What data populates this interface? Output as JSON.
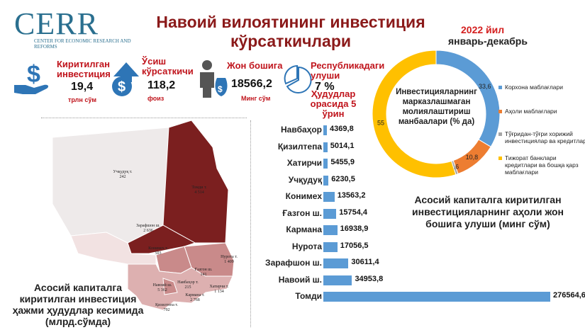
{
  "header": {
    "logo": "CERR",
    "logo_subtitle": "CENTER FOR ECONOMIC RESEARCH AND REFORMS",
    "title": "Навоий вилоятининг инвестиция кўрсаткичлари",
    "period_year": "2022 йил",
    "period_months": "январь-декабрь"
  },
  "kpis": [
    {
      "label": "Киритилган инвестиция",
      "value": "19,4",
      "unit": "трлн сўм",
      "icon": "money-hand-icon"
    },
    {
      "label": "Ўсиш кўрсаткичи",
      "value": "118,2",
      "unit": "фоиз",
      "icon": "growth-arrow-icon"
    },
    {
      "label": "Жон бошига",
      "value": "18566,2",
      "unit": "Минг сўм",
      "icon": "person-money-icon"
    },
    {
      "label": "Республикадаги улуши",
      "value": "7 %",
      "note": "Ҳудудлар орасида 5 ўрин",
      "icon": "pie-icon"
    }
  ],
  "map": {
    "caption": "Асосий капиталга киритилган инвестиция ҳажми ҳудудлар кесимида (млрд.сўмда)",
    "districts": [
      {
        "name": "Учқудуқ т.",
        "value": "242",
        "color": "#eeeaea"
      },
      {
        "name": "Томди т.",
        "value": "4 514",
        "color": "#7b1f1f"
      },
      {
        "name": "Зарафшон ш.",
        "value": "2 636",
        "color": "#7b1f1f"
      },
      {
        "name": "Конимех т.",
        "value": "503",
        "color": "#f2e2e2"
      },
      {
        "name": "Нурота т.",
        "value": "1 409",
        "color": "#c98a8a"
      },
      {
        "name": "Ғазгон ш.",
        "value": "141",
        "color": "#c98a8a"
      },
      {
        "name": "Навбаҳор т.",
        "value": "215",
        "color": "#ddb0b0"
      },
      {
        "name": "Навоий ш.",
        "value": "5 362",
        "color": "#ddb0b0"
      },
      {
        "name": "Хатирчи т.",
        "value": "1 134",
        "color": "#ddb0b0"
      },
      {
        "name": "Кармана т.",
        "value": "2 768",
        "color": "#ddb0b0"
      },
      {
        "name": "Қизилтепа т.",
        "value": "792",
        "color": "#ddb0b0"
      }
    ]
  },
  "chart_data": [
    {
      "type": "bar",
      "orientation": "horizontal",
      "title": "Асосий капиталга киритилган инвестицияларнинг аҳоли жон бошига улуши (минг сўм)",
      "categories": [
        "Навбаҳор",
        "Қизилтепа",
        "Хатирчи",
        "Учқудуқ",
        "Конимех",
        "Ғазгон ш.",
        "Кармана",
        "Нурота",
        "Зарафшон ш.",
        "Навоий ш.",
        "Томди"
      ],
      "values": [
        4369.8,
        5014.1,
        5455.9,
        6230.5,
        13563.2,
        15754.4,
        16938.9,
        17056.5,
        30611.4,
        34953.8,
        276564.6
      ],
      "value_labels": [
        "4369,8",
        "5014,1",
        "5455,9",
        "6230,5",
        "13563,2",
        "15754,4",
        "16938,9",
        "17056,5",
        "30611,4",
        "34953,8",
        "276564,6"
      ],
      "color": "#5b9bd5"
    },
    {
      "type": "pie",
      "donut": true,
      "title": "Инвестицияларнинг марказлашмаган молиялаштириш манбаалари (% да)",
      "labels": [
        "Корхона маблағлари",
        "Аҳоли маблағлари",
        "Тўғридан-тўғри хорижий инвестициялар ва кредитлар",
        "Тижорат банклари кредитлари ва бошқа қарз маблағлари"
      ],
      "values": [
        33.6,
        10.8,
        0.6,
        55
      ],
      "value_labels": [
        "33,6",
        "10,8",
        "0,6",
        "55"
      ],
      "colors": [
        "#5b9bd5",
        "#ed7d31",
        "#a5a5a5",
        "#ffc000"
      ],
      "legend_position": "right"
    }
  ]
}
